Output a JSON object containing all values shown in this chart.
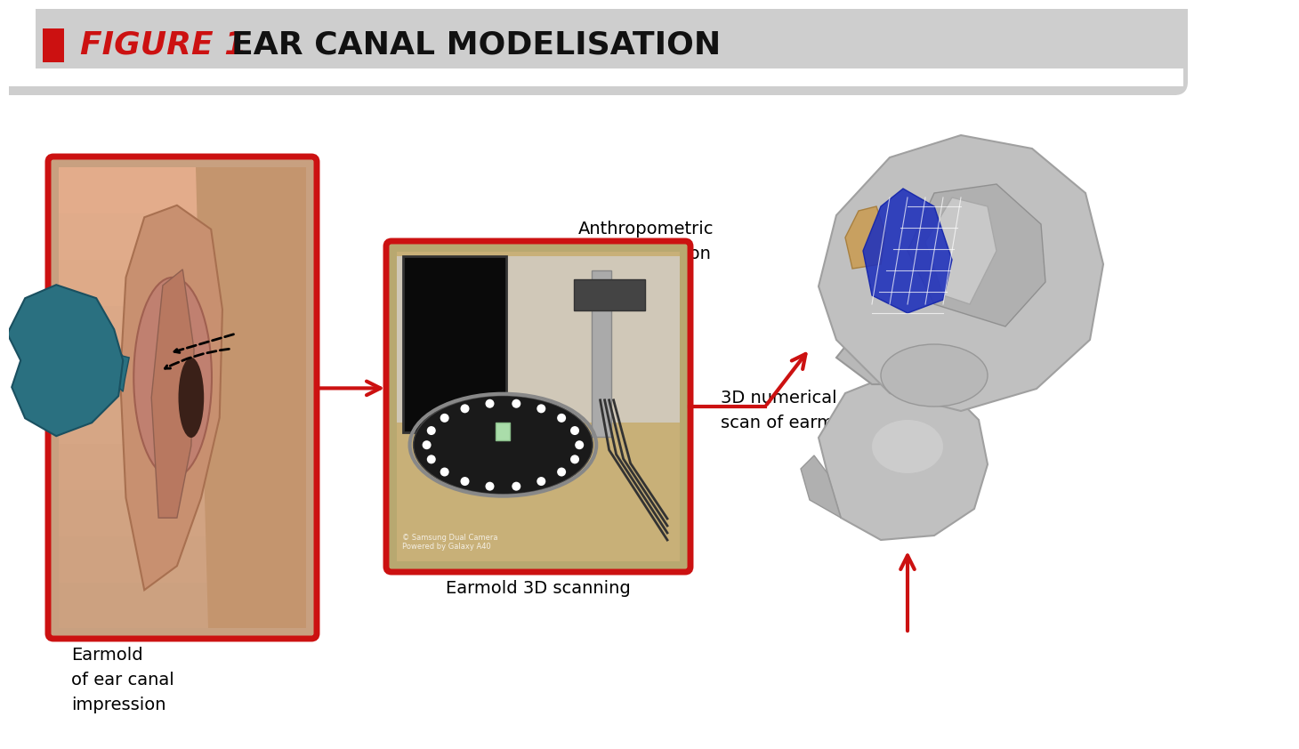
{
  "title_figure": "FIGURE 1",
  "title_text": "EAR CANAL MODELISATION",
  "header_bg_color": "#cecece",
  "header_text_color": "#111111",
  "figure_label_color": "#cc1111",
  "bg_color": "#ffffff",
  "red_border_color": "#cc1111",
  "arrow_color": "#cc1111",
  "label1": "Earmold\nof ear canal\nimpression",
  "label2": "Earmold 3D scanning",
  "label3": "3D numerical\nscan of earmolds",
  "label4": "Anthropometric\ndata extraction",
  "skin_color": "#c8a080",
  "skin_dark": "#b08060",
  "teal_color": "#2a7080",
  "teal_dark": "#1a5060",
  "wood_color": "#c8a060",
  "gray3d_color": "#b8b8b8",
  "gray3d_dark": "#909090",
  "blue_canal": "#2233cc",
  "scanner_bg": "#b8a878"
}
